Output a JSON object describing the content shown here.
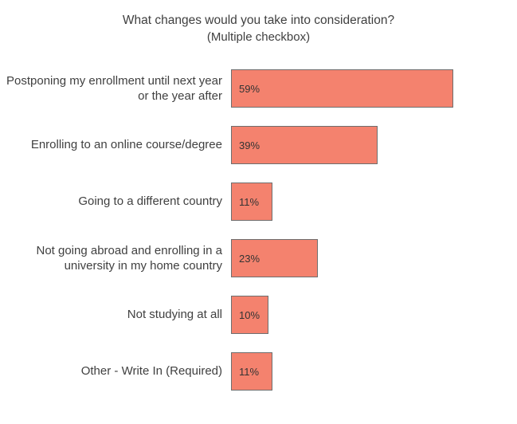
{
  "chart_data": {
    "type": "bar",
    "orientation": "horizontal",
    "title": "What changes would you take into consideration?",
    "subtitle": "(Multiple checkbox)",
    "categories": [
      "Postponing my enrollment until next year or the year after",
      "Enrolling to an online course/degree",
      "Going to a different country",
      "Not going abroad and enrolling in a university in my home country",
      "Not studying at all",
      "Other - Write In (Required)"
    ],
    "values": [
      59,
      39,
      11,
      23,
      10,
      11
    ],
    "value_labels": [
      "59%",
      "39%",
      "11%",
      "23%",
      "10%",
      "11%"
    ],
    "xlim": [
      0,
      75
    ],
    "grid": false,
    "legend": "none",
    "bar_color": "#F4826E",
    "bar_border_color": "#6e6e6e",
    "text_color": "#404040",
    "value_label_color": "#333333"
  }
}
